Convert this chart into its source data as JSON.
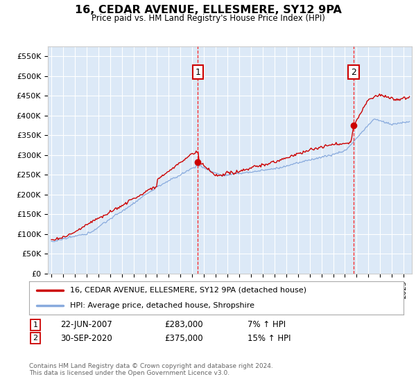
{
  "title": "16, CEDAR AVENUE, ELLESMERE, SY12 9PA",
  "subtitle": "Price paid vs. HM Land Registry's House Price Index (HPI)",
  "plot_bg_color": "#dce9f7",
  "ylim": [
    0,
    575000
  ],
  "yticks": [
    0,
    50000,
    100000,
    150000,
    200000,
    250000,
    300000,
    350000,
    400000,
    450000,
    500000,
    550000
  ],
  "ytick_labels": [
    "£0",
    "£50K",
    "£100K",
    "£150K",
    "£200K",
    "£250K",
    "£300K",
    "£350K",
    "£400K",
    "£450K",
    "£500K",
    "£550K"
  ],
  "line1_color": "#cc0000",
  "line2_color": "#88aadd",
  "sale1_x": 2007.47,
  "sale1_y": 283000,
  "sale1_label": "1",
  "sale1_date": "22-JUN-2007",
  "sale1_price": "£283,000",
  "sale1_hpi": "7% ↑ HPI",
  "sale2_x": 2020.75,
  "sale2_y": 375000,
  "sale2_label": "2",
  "sale2_date": "30-SEP-2020",
  "sale2_price": "£375,000",
  "sale2_hpi": "15% ↑ HPI",
  "legend1_label": "16, CEDAR AVENUE, ELLESMERE, SY12 9PA (detached house)",
  "legend2_label": "HPI: Average price, detached house, Shropshire",
  "footer": "Contains HM Land Registry data © Crown copyright and database right 2024.\nThis data is licensed under the Open Government Licence v3.0.",
  "xtick_years": [
    1995,
    1996,
    1997,
    1998,
    1999,
    2000,
    2001,
    2002,
    2003,
    2004,
    2005,
    2006,
    2007,
    2008,
    2009,
    2010,
    2011,
    2012,
    2013,
    2014,
    2015,
    2016,
    2017,
    2018,
    2019,
    2020,
    2021,
    2022,
    2023,
    2024,
    2025
  ]
}
